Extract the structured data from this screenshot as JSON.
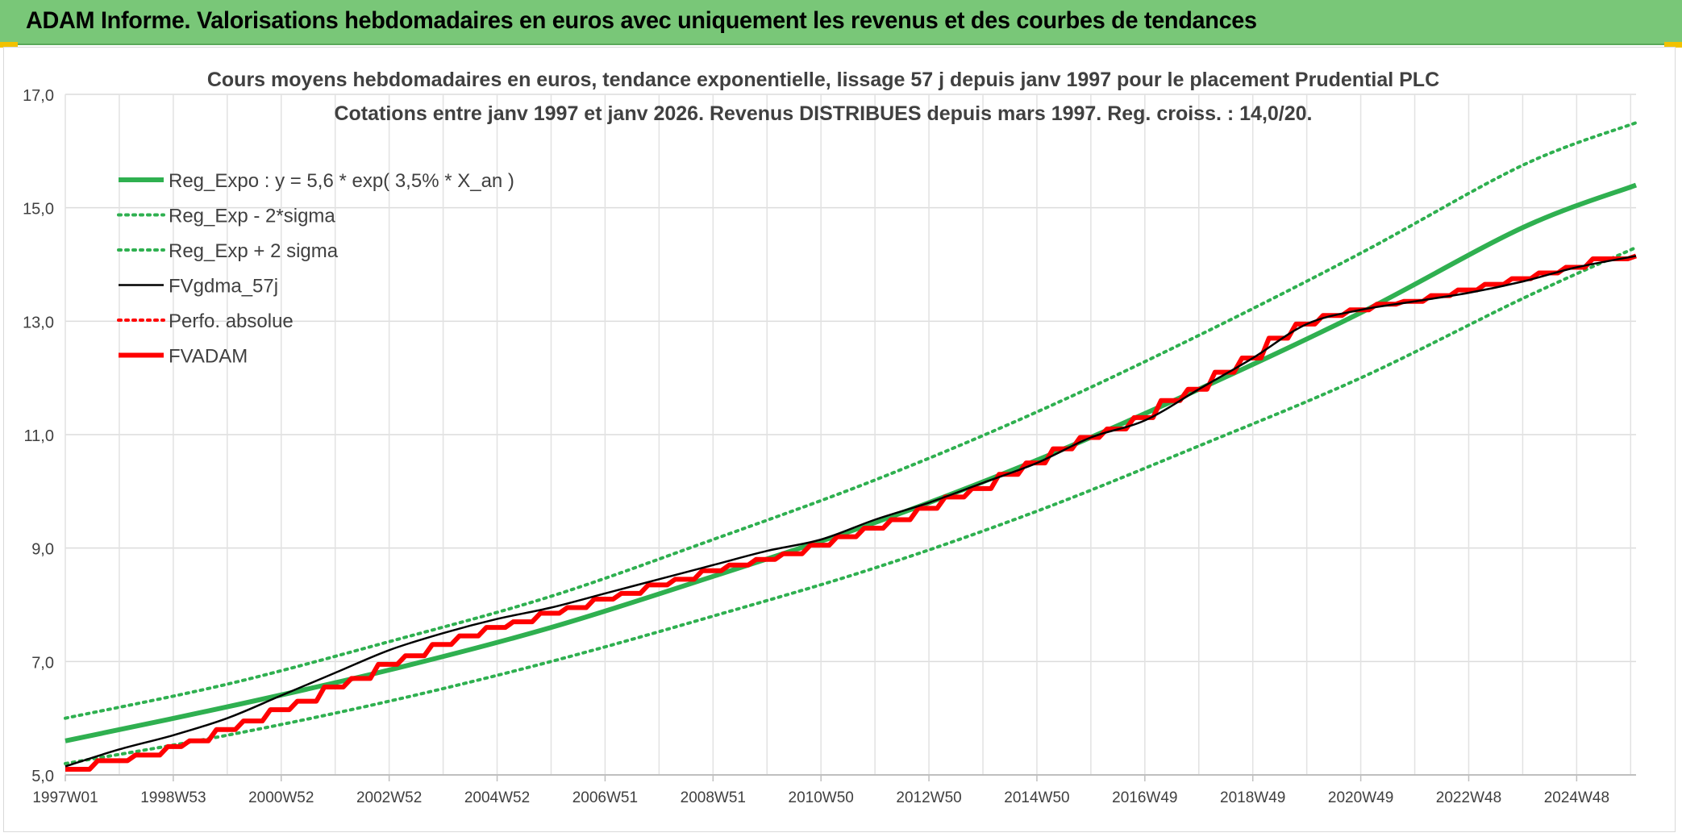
{
  "banner": {
    "title": "ADAM Informe. Valorisations hebdomadaires en euros avec uniquement les revenus et des courbes de tendances",
    "background": "#79c778",
    "corner_color": "#f2c200"
  },
  "chart_data": {
    "type": "line",
    "title": "Cours moyens hebdomadaires en euros, tendance exponentielle, lissage 57 j depuis janv 1997 pour le placement Prudential PLC",
    "subtitle": "Cotations entre janv 1997 et janv 2026. Revenus DISTRIBUES depuis mars 1997. Reg. croiss. : 14,0/20.",
    "xlabel": "",
    "ylabel": "",
    "x_ticks": [
      "1997W01",
      "1998W53",
      "2000W52",
      "2002W52",
      "2004W52",
      "2006W51",
      "2008W51",
      "2010W50",
      "2012W50",
      "2014W50",
      "2016W49",
      "2018W49",
      "2020W49",
      "2022W48",
      "2024W48"
    ],
    "x_tick_years": [
      1997.0,
      1999.0,
      2001.0,
      2003.0,
      2005.0,
      2007.0,
      2009.0,
      2011.0,
      2013.0,
      2015.0,
      2017.0,
      2019.0,
      2021.0,
      2023.0,
      2025.0
    ],
    "xlim": [
      1997.0,
      2026.1
    ],
    "ylim": [
      5.0,
      17.0
    ],
    "y_ticks": [
      "5,0",
      "7,0",
      "9,0",
      "11,0",
      "13,0",
      "15,0",
      "17,0"
    ],
    "y_tick_values": [
      5,
      7,
      9,
      11,
      13,
      15,
      17
    ],
    "grid": true,
    "legend_position": "top-left",
    "series": [
      {
        "name": "Reg_Expo : y = 5,6 * exp( 3,5% *  X_an )",
        "style": "solid-thick",
        "color": "#2fb050",
        "x": [
          1997.0,
          2000.0,
          2003.0,
          2006.0,
          2009.0,
          2012.0,
          2015.0,
          2018.0,
          2021.0,
          2024.0,
          2026.1
        ],
        "y": [
          5.6,
          6.2,
          6.85,
          7.6,
          8.5,
          9.45,
          10.55,
          11.8,
          13.15,
          14.65,
          15.4
        ]
      },
      {
        "name": "Reg_Exp - 2*sigma",
        "style": "dotted",
        "color": "#2fb050",
        "x": [
          1997.0,
          2000.0,
          2003.0,
          2006.0,
          2009.0,
          2012.0,
          2015.0,
          2018.0,
          2021.0,
          2024.0,
          2026.1
        ],
        "y": [
          5.2,
          5.7,
          6.3,
          7.0,
          7.8,
          8.65,
          9.65,
          10.8,
          12.0,
          13.4,
          14.3
        ]
      },
      {
        "name": "Reg_Exp + 2 sigma",
        "style": "dotted",
        "color": "#2fb050",
        "x": [
          1997.0,
          2000.0,
          2003.0,
          2006.0,
          2009.0,
          2012.0,
          2015.0,
          2018.0,
          2021.0,
          2024.0,
          2026.1
        ],
        "y": [
          6.0,
          6.6,
          7.35,
          8.15,
          9.15,
          10.2,
          11.4,
          12.75,
          14.2,
          15.75,
          16.5
        ]
      },
      {
        "name": "FVgdma_57j",
        "style": "solid",
        "color": "#000000",
        "x": [
          1997.0,
          1998.0,
          1999.0,
          2000.0,
          2001.0,
          2002.0,
          2003.0,
          2004.0,
          2005.0,
          2006.0,
          2007.0,
          2008.0,
          2009.0,
          2010.0,
          2011.0,
          2012.0,
          2013.0,
          2014.0,
          2015.0,
          2016.0,
          2017.0,
          2018.0,
          2019.0,
          2020.0,
          2021.0,
          2022.0,
          2023.0,
          2024.0,
          2025.0,
          2026.1
        ],
        "y": [
          5.15,
          5.45,
          5.7,
          6.0,
          6.4,
          6.8,
          7.2,
          7.5,
          7.75,
          7.95,
          8.2,
          8.45,
          8.7,
          8.95,
          9.15,
          9.5,
          9.8,
          10.15,
          10.5,
          10.95,
          11.25,
          11.8,
          12.35,
          12.95,
          13.2,
          13.35,
          13.5,
          13.7,
          13.95,
          14.15
        ]
      },
      {
        "name": "Perfo. absolue",
        "style": "dotted",
        "color": "#ff0000",
        "x": [],
        "y": []
      },
      {
        "name": "FVADAM",
        "style": "step-thick",
        "color": "#ff0000",
        "x": [
          1997.0,
          1997.6,
          1998.3,
          1998.9,
          1999.3,
          1999.8,
          2000.3,
          2000.8,
          2001.3,
          2001.8,
          2002.3,
          2002.8,
          2003.3,
          2003.8,
          2004.3,
          2004.8,
          2005.3,
          2005.8,
          2006.3,
          2006.8,
          2007.3,
          2007.8,
          2008.3,
          2008.8,
          2009.3,
          2009.8,
          2010.3,
          2010.8,
          2011.3,
          2011.8,
          2012.3,
          2012.8,
          2013.3,
          2013.8,
          2014.3,
          2014.8,
          2015.3,
          2015.8,
          2016.3,
          2016.8,
          2017.3,
          2017.8,
          2018.3,
          2018.8,
          2019.3,
          2019.8,
          2020.3,
          2020.8,
          2021.3,
          2021.8,
          2022.3,
          2022.8,
          2023.3,
          2023.8,
          2024.3,
          2024.8,
          2025.3,
          2026.1
        ],
        "y": [
          5.1,
          5.25,
          5.35,
          5.5,
          5.6,
          5.8,
          5.95,
          6.15,
          6.3,
          6.55,
          6.7,
          6.95,
          7.1,
          7.3,
          7.45,
          7.6,
          7.7,
          7.85,
          7.95,
          8.1,
          8.2,
          8.35,
          8.45,
          8.6,
          8.7,
          8.8,
          8.9,
          9.05,
          9.2,
          9.35,
          9.5,
          9.7,
          9.9,
          10.05,
          10.3,
          10.5,
          10.75,
          10.95,
          11.1,
          11.3,
          11.6,
          11.8,
          12.1,
          12.35,
          12.7,
          12.95,
          13.1,
          13.2,
          13.3,
          13.35,
          13.45,
          13.55,
          13.65,
          13.75,
          13.85,
          13.95,
          14.1,
          14.15
        ]
      }
    ]
  }
}
